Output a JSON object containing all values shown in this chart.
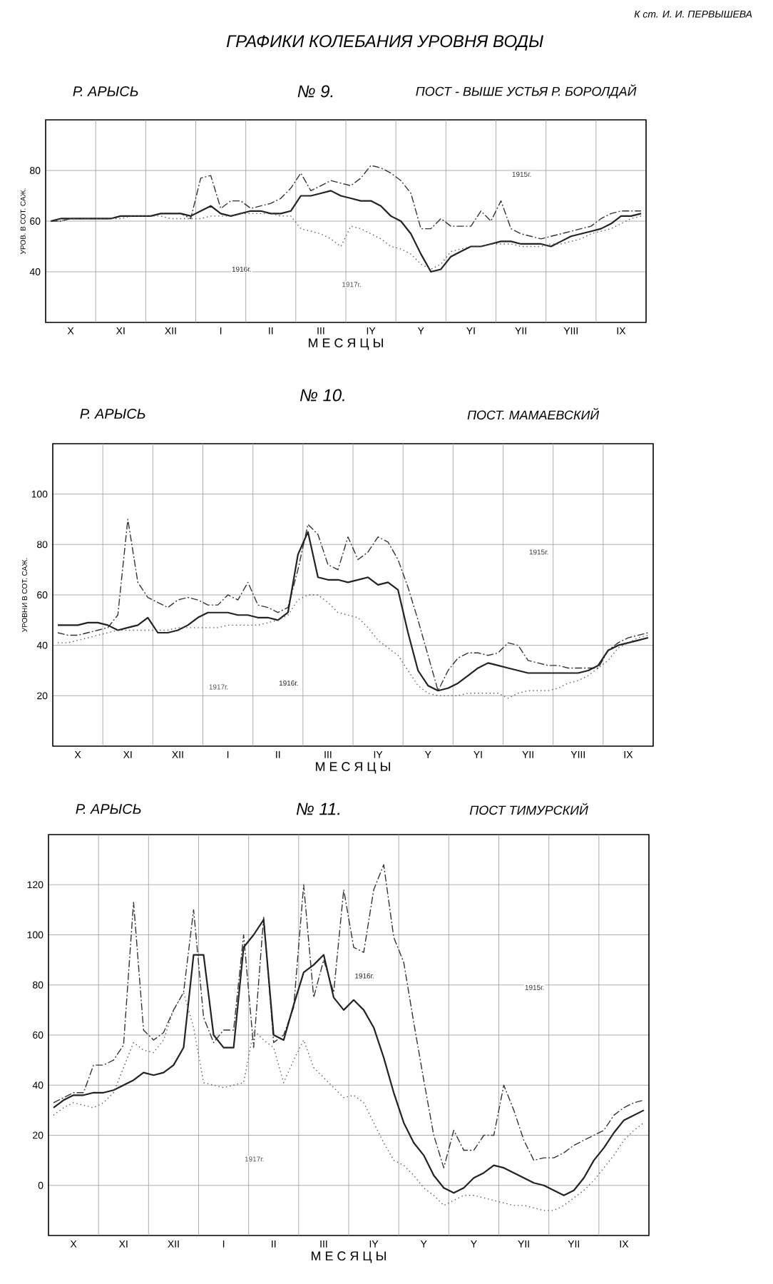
{
  "chart_data": [
    {
      "type": "line",
      "title": "№ 9.",
      "subtitle": "ПОСТ - ВЫШЕ УСТЬЯ Р. БОРОЛДАЙ",
      "xlabel": "М Е С Я Ц Ы",
      "ylabel": "УРОВ. В СОТ. САЖ.",
      "annotations": [
        "Р. АРЫСЬ",
        "ГРАФИКИ КОЛЕБАНИЯ УРОВНЯ ВОДЫ",
        "К ст. И. И. ПЕРВЫШЕВА"
      ],
      "grid": true,
      "categories": [
        null,
        null,
        "X",
        null,
        null,
        null,
        null,
        "XI",
        null,
        null,
        null,
        null,
        "XII",
        null,
        null,
        null,
        null,
        "I",
        null,
        null,
        null,
        null,
        "II",
        null,
        null,
        null,
        null,
        "III",
        null,
        null,
        null,
        null,
        "IY",
        null,
        null,
        null,
        null,
        "Y",
        null,
        null,
        null,
        null,
        "YI",
        null,
        null,
        null,
        null,
        "YII",
        null,
        null,
        null,
        null,
        "YIII",
        null,
        null,
        null,
        null,
        "IX",
        null,
        null
      ],
      "ylim": [
        20,
        100
      ],
      "yticks": [
        40,
        60,
        80
      ],
      "series": [
        {
          "name": "1915г.",
          "color": "#333333",
          "line_style": "dashed",
          "values": [
            60,
            60,
            61,
            61,
            61,
            61,
            61,
            62,
            62,
            62,
            62,
            63,
            63,
            63,
            61,
            77,
            78,
            65,
            68,
            68,
            65,
            66,
            67,
            69,
            73,
            79,
            72,
            74,
            76,
            75,
            74,
            77,
            82,
            81,
            79,
            76,
            71,
            57,
            57,
            61,
            58,
            58,
            58,
            64,
            60,
            68,
            57,
            55,
            54,
            53,
            54,
            55,
            56,
            57,
            58,
            61,
            63,
            64,
            64,
            64
          ]
        },
        {
          "name": "1916г.",
          "color": "#222222",
          "line_style": "solid",
          "values": [
            60,
            61,
            61,
            61,
            61,
            61,
            61,
            62,
            62,
            62,
            62,
            63,
            63,
            63,
            62,
            64,
            66,
            63,
            62,
            63,
            64,
            64,
            63,
            63,
            64,
            70,
            70,
            71,
            72,
            70,
            69,
            68,
            68,
            66,
            62,
            60,
            55,
            47,
            40,
            41,
            46,
            48,
            50,
            50,
            51,
            52,
            52,
            51,
            51,
            51,
            50,
            52,
            54,
            55,
            56,
            57,
            59,
            62,
            62,
            63
          ]
        },
        {
          "name": "1917г.",
          "color": "#555555",
          "line_style": "dotted",
          "values": [
            60,
            60,
            61,
            61,
            61,
            61,
            61,
            61,
            62,
            62,
            62,
            62,
            61,
            61,
            61,
            61,
            62,
            62,
            62,
            63,
            63,
            63,
            63,
            62,
            62,
            57,
            56,
            55,
            53,
            50,
            58,
            57,
            55,
            53,
            50,
            49,
            47,
            43,
            41,
            43,
            48,
            49,
            50,
            50,
            51,
            51,
            51,
            50,
            50,
            50,
            51,
            51,
            52,
            53,
            55,
            56,
            57,
            59,
            61,
            62
          ]
        }
      ]
    },
    {
      "type": "line",
      "title": "№ 10.",
      "subtitle": "ПОСТ. МАМАЕВСКИЙ",
      "xlabel": "М Е С Я Ц Ы",
      "ylabel": "УРОВНИ В СОТ. САЖ.",
      "annotations": [
        "Р. АРЫСЬ"
      ],
      "grid": true,
      "categories": [
        null,
        null,
        "X",
        null,
        null,
        null,
        null,
        "XI",
        null,
        null,
        null,
        null,
        "XII",
        null,
        null,
        null,
        null,
        "I",
        null,
        null,
        null,
        null,
        "II",
        null,
        null,
        null,
        null,
        "III",
        null,
        null,
        null,
        null,
        "IY",
        null,
        null,
        null,
        null,
        "Y",
        null,
        null,
        null,
        null,
        "YI",
        null,
        null,
        null,
        null,
        "YII",
        null,
        null,
        null,
        null,
        "YIII",
        null,
        null,
        null,
        null,
        "IX",
        null,
        null
      ],
      "ylim": [
        0,
        120
      ],
      "yticks": [
        20,
        40,
        60,
        80,
        100
      ],
      "series": [
        {
          "name": "1915г.",
          "color": "#333333",
          "line_style": "dashed",
          "values": [
            45,
            44,
            44,
            45,
            46,
            47,
            52,
            90,
            65,
            59,
            57,
            55,
            58,
            59,
            58,
            56,
            56,
            60,
            58,
            65,
            56,
            55,
            53,
            55,
            70,
            88,
            84,
            72,
            70,
            83,
            74,
            77,
            83,
            81,
            74,
            63,
            50,
            36,
            22,
            30,
            35,
            37,
            37,
            36,
            37,
            41,
            40,
            34,
            33,
            32,
            32,
            31,
            31,
            31,
            31,
            38,
            41,
            43,
            44,
            45
          ]
        },
        {
          "name": "1916г.",
          "color": "#222222",
          "line_style": "solid",
          "values": [
            48,
            48,
            48,
            49,
            49,
            48,
            46,
            47,
            48,
            51,
            45,
            45,
            46,
            48,
            51,
            53,
            53,
            53,
            52,
            52,
            51,
            51,
            50,
            53,
            76,
            85,
            67,
            66,
            66,
            65,
            66,
            67,
            64,
            65,
            62,
            45,
            30,
            24,
            22,
            23,
            25,
            28,
            31,
            33,
            32,
            31,
            30,
            29,
            29,
            29,
            29,
            29,
            29,
            30,
            32,
            38,
            40,
            41,
            42,
            43
          ]
        },
        {
          "name": "1917г.",
          "color": "#555555",
          "line_style": "dotted",
          "values": [
            41,
            41,
            42,
            43,
            44,
            45,
            46,
            46,
            46,
            46,
            46,
            46,
            47,
            47,
            47,
            47,
            47,
            48,
            48,
            48,
            48,
            49,
            50,
            52,
            58,
            60,
            60,
            57,
            53,
            52,
            51,
            47,
            42,
            39,
            36,
            30,
            24,
            21,
            20,
            20,
            20,
            21,
            21,
            21,
            21,
            19,
            21,
            22,
            22,
            22,
            23,
            25,
            26,
            28,
            31,
            34,
            39,
            41,
            43,
            44
          ]
        }
      ]
    },
    {
      "type": "line",
      "title": "№ 11.",
      "subtitle": "ПОСТ ТИМУРСКИЙ",
      "xlabel": "М Е С Я Ц Ы",
      "annotations": [
        "Р. АРЫСЬ"
      ],
      "grid": true,
      "categories": [
        null,
        null,
        "X",
        null,
        null,
        null,
        null,
        "XI",
        null,
        null,
        null,
        null,
        "XII",
        null,
        null,
        null,
        null,
        "I",
        null,
        null,
        null,
        null,
        "II",
        null,
        null,
        null,
        null,
        "III",
        null,
        null,
        null,
        null,
        "IY",
        null,
        null,
        null,
        null,
        "Y",
        null,
        null,
        null,
        null,
        "Y",
        null,
        null,
        null,
        null,
        "YII",
        null,
        null,
        null,
        null,
        "YII",
        null,
        null,
        null,
        null,
        "IX",
        null,
        null
      ],
      "ylim": [
        -20,
        140
      ],
      "yticks": [
        0,
        20,
        40,
        60,
        80,
        100,
        120
      ],
      "series": [
        {
          "name": "1915г.",
          "color": "#333333",
          "line_style": "dashed",
          "values": [
            33,
            35,
            37,
            37,
            48,
            48,
            50,
            56,
            113,
            62,
            58,
            61,
            70,
            77,
            110,
            67,
            57,
            62,
            62,
            100,
            55,
            107,
            57,
            60,
            71,
            120,
            75,
            90,
            77,
            118,
            95,
            93,
            118,
            128,
            99,
            89,
            65,
            42,
            20,
            7,
            22,
            14,
            14,
            20,
            20,
            40,
            30,
            18,
            10,
            11,
            11,
            13,
            16,
            18,
            20,
            22,
            28,
            31,
            33,
            34
          ]
        },
        {
          "name": "1916г.",
          "color": "#222222",
          "line_style": "solid",
          "values": [
            31,
            34,
            36,
            36,
            37,
            37,
            38,
            40,
            42,
            45,
            44,
            45,
            48,
            55,
            92,
            92,
            60,
            55,
            55,
            95,
            100,
            106,
            60,
            58,
            72,
            85,
            88,
            92,
            75,
            70,
            74,
            70,
            63,
            51,
            37,
            25,
            17,
            12,
            4,
            -1,
            -3,
            -1,
            3,
            5,
            8,
            7,
            5,
            3,
            1,
            0,
            -2,
            -4,
            -2,
            3,
            10,
            15,
            21,
            26,
            28,
            30
          ]
        },
        {
          "name": "1917г.",
          "color": "#555555",
          "line_style": "dotted",
          "values": [
            28,
            31,
            33,
            32,
            31,
            33,
            37,
            47,
            57,
            54,
            53,
            58,
            70,
            77,
            63,
            41,
            40,
            39,
            40,
            41,
            62,
            58,
            55,
            41,
            50,
            58,
            47,
            43,
            39,
            35,
            36,
            33,
            25,
            17,
            10,
            8,
            4,
            -1,
            -4,
            -8,
            -6,
            -4,
            -4,
            -5,
            -6,
            -7,
            -8,
            -8,
            -9,
            -10,
            -10,
            -8,
            -5,
            -2,
            2,
            7,
            12,
            18,
            22,
            25
          ]
        }
      ]
    }
  ]
}
